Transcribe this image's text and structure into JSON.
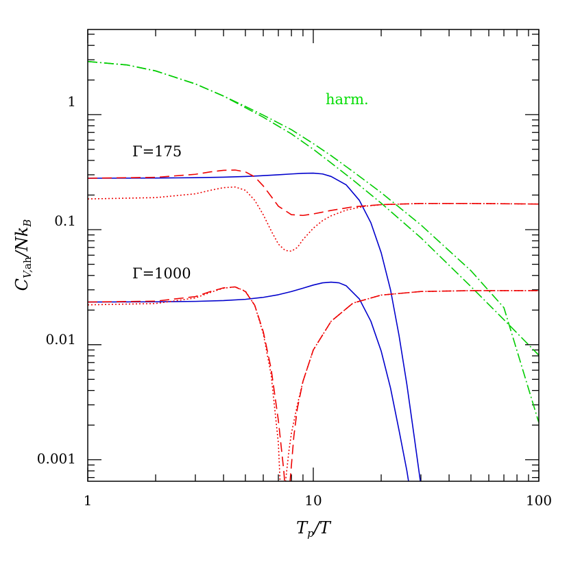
{
  "chart_data": {
    "type": "line",
    "xlabel": "T_p/T",
    "ylabel": "C_V,ah/Nk_B",
    "xscale": "log",
    "yscale": "log",
    "xlim": [
      1,
      100
    ],
    "ylim": [
      0.00065,
      5.5
    ],
    "x_ticks": [
      "1",
      "10",
      "100"
    ],
    "y_ticks": [
      "0.001",
      "0.01",
      "0.1",
      "1"
    ],
    "annotations": [
      {
        "text": "harm.",
        "color": "#00dd00"
      },
      {
        "text": "Γ=175",
        "color": "#000000"
      },
      {
        "text": "Γ=1000",
        "color": "#000000"
      }
    ],
    "series": [
      {
        "color": "#00cc00",
        "dash": "dash-dot",
        "x": [
          1,
          1.5,
          2,
          3,
          4,
          5,
          6,
          8,
          10,
          12,
          15,
          20,
          30,
          50,
          70,
          100
        ],
        "y": [
          2.9,
          2.7,
          2.4,
          1.85,
          1.45,
          1.15,
          0.95,
          0.68,
          0.5,
          0.38,
          0.27,
          0.17,
          0.085,
          0.032,
          0.0165,
          0.0081
        ]
      },
      {
        "color": "#00cc00",
        "dash": "dash-dot",
        "x": [
          1,
          1.5,
          2,
          3,
          4,
          5,
          6,
          8,
          10,
          12,
          15,
          20,
          30,
          50,
          70,
          100
        ],
        "y": [
          2.9,
          2.7,
          2.4,
          1.85,
          1.45,
          1.18,
          0.99,
          0.74,
          0.56,
          0.44,
          0.32,
          0.21,
          0.11,
          0.044,
          0.021,
          0.0021
        ]
      },
      {
        "color": "#0000cc",
        "dash": "solid",
        "x": [
          1,
          2,
          3,
          4,
          5,
          6,
          7,
          8,
          9,
          10,
          11,
          12,
          14,
          16,
          18,
          20,
          22,
          24,
          26,
          28,
          30,
          32
        ],
        "y": [
          0.28,
          0.281,
          0.283,
          0.286,
          0.29,
          0.295,
          0.3,
          0.305,
          0.309,
          0.31,
          0.305,
          0.29,
          0.245,
          0.18,
          0.115,
          0.063,
          0.03,
          0.012,
          0.0045,
          0.0016,
          0.0006,
          0.0002
        ]
      },
      {
        "color": "#ee0000",
        "dash": "dash",
        "x": [
          1,
          2,
          3,
          3.5,
          4,
          4.5,
          5,
          5.5,
          6,
          6.5,
          7,
          8,
          9,
          10,
          12,
          15,
          20,
          30,
          50,
          100
        ],
        "y": [
          0.28,
          0.285,
          0.303,
          0.318,
          0.328,
          0.33,
          0.318,
          0.288,
          0.24,
          0.195,
          0.16,
          0.135,
          0.133,
          0.137,
          0.147,
          0.158,
          0.165,
          0.169,
          0.169,
          0.167
        ]
      },
      {
        "color": "#ee0000",
        "dash": "dot",
        "x": [
          1,
          2,
          3,
          3.5,
          4,
          4.5,
          5,
          5.5,
          6,
          6.5,
          7,
          7.5,
          8,
          8.5,
          9,
          10,
          11,
          12,
          14,
          17,
          20,
          30,
          50,
          100
        ],
        "y": [
          0.185,
          0.19,
          0.205,
          0.22,
          0.232,
          0.235,
          0.22,
          0.18,
          0.135,
          0.098,
          0.075,
          0.066,
          0.065,
          0.07,
          0.082,
          0.103,
          0.12,
          0.132,
          0.148,
          0.16,
          0.165,
          0.169,
          0.169,
          0.167
        ]
      },
      {
        "color": "#0000cc",
        "dash": "solid",
        "x": [
          1,
          2,
          3,
          4,
          5,
          6,
          7,
          8,
          9,
          10,
          11,
          12,
          13,
          14,
          16,
          18,
          20,
          22,
          24,
          26,
          27.5
        ],
        "y": [
          0.0235,
          0.0236,
          0.0238,
          0.0242,
          0.0248,
          0.0258,
          0.0272,
          0.029,
          0.031,
          0.033,
          0.0345,
          0.035,
          0.0345,
          0.0325,
          0.025,
          0.016,
          0.0088,
          0.0042,
          0.0018,
          0.0008,
          0.0004
        ]
      },
      {
        "color": "#ee0000",
        "dash": "dash",
        "x": [
          1,
          2,
          3,
          3.5,
          4,
          4.5,
          5,
          5.5,
          6,
          6.5,
          7,
          7.4,
          7.6,
          7.8,
          8,
          8.2,
          8.5,
          9,
          10,
          12,
          15,
          20,
          30,
          50,
          100
        ],
        "y": [
          0.0235,
          0.0239,
          0.0262,
          0.029,
          0.0312,
          0.0318,
          0.029,
          0.022,
          0.013,
          0.0062,
          0.0022,
          0.0008,
          0.0004,
          0.0005,
          0.0009,
          0.0016,
          0.0028,
          0.0048,
          0.009,
          0.016,
          0.023,
          0.027,
          0.029,
          0.0295,
          0.0295
        ]
      },
      {
        "color": "#ee0000",
        "dash": "dot",
        "x": [
          1,
          2,
          3,
          3.5,
          4,
          4.5,
          5,
          5.5,
          6,
          6.5,
          7,
          7.2,
          7.5,
          7.8,
          8,
          8.5,
          9,
          10,
          12,
          15,
          20,
          30,
          50,
          100
        ],
        "y": [
          0.0222,
          0.0228,
          0.0255,
          0.0285,
          0.031,
          0.0318,
          0.0292,
          0.022,
          0.0125,
          0.0055,
          0.0014,
          0.0004,
          0.0006,
          0.0012,
          0.0017,
          0.003,
          0.0048,
          0.009,
          0.016,
          0.023,
          0.027,
          0.029,
          0.0295,
          0.0295
        ]
      }
    ]
  }
}
